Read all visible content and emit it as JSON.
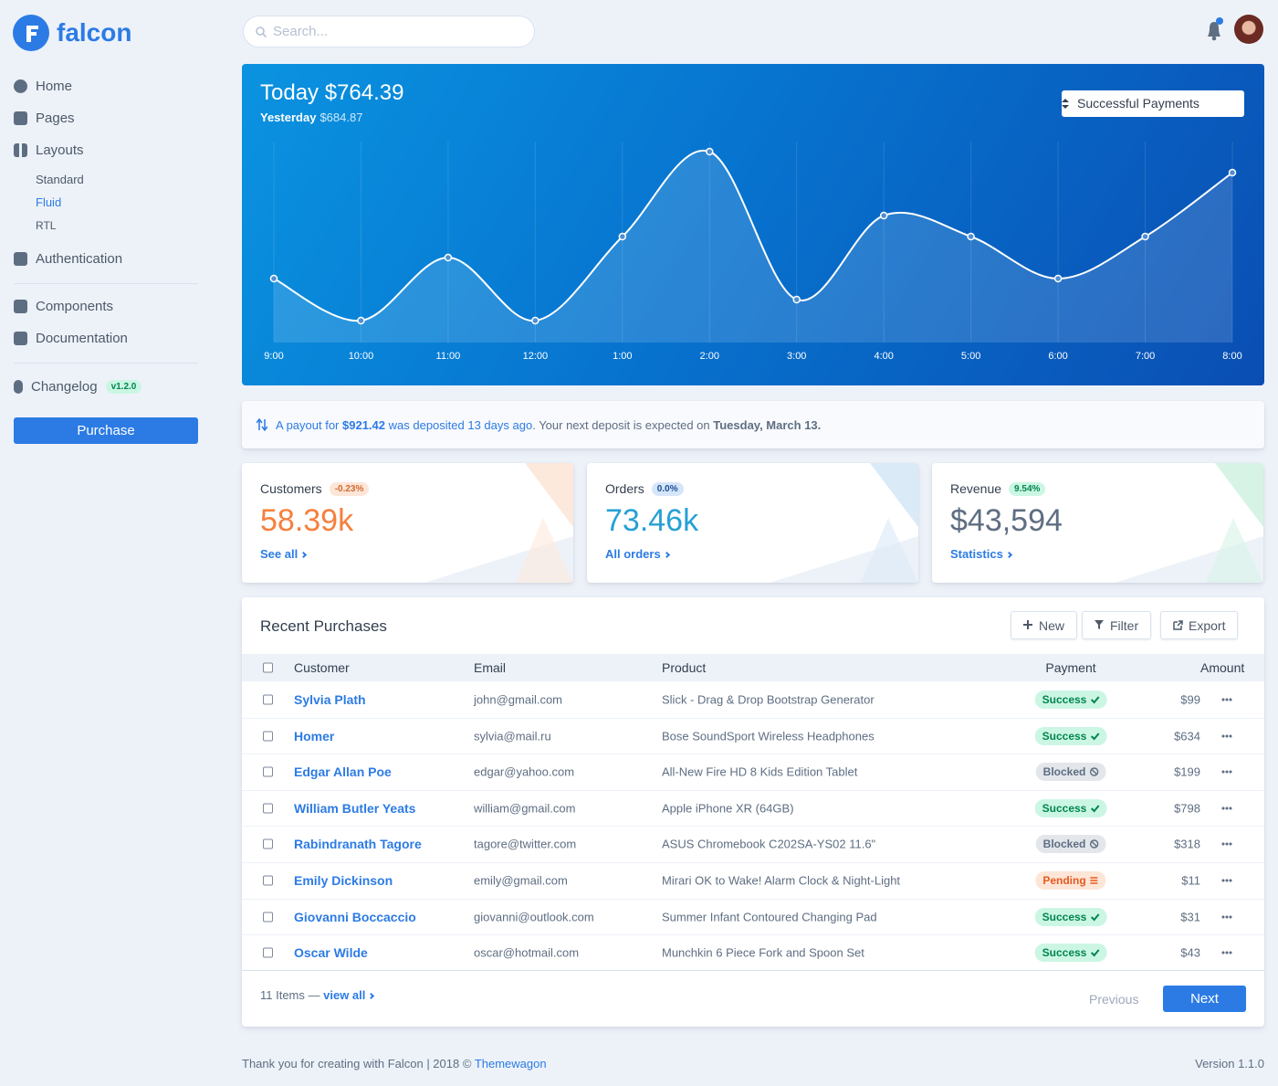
{
  "brand": "falcon",
  "search_placeholder": "Search...",
  "nav": {
    "home": "Home",
    "pages": "Pages",
    "layouts": "Layouts",
    "standard": "Standard",
    "fluid": "Fluid",
    "rtl": "RTL",
    "authentication": "Authentication",
    "components": "Components",
    "documentation": "Documentation",
    "changelog": "Changelog",
    "changelog_badge": "v1.2.0",
    "purchase": "Purchase"
  },
  "chart_data": {
    "type": "line",
    "title": "Today $764.39",
    "subtitle_label": "Yesterday",
    "subtitle_value": "$684.87",
    "select": "Successful Payments",
    "categories": [
      "9:00",
      "10:00",
      "11:00",
      "12:00",
      "1:00",
      "2:00",
      "3:00",
      "4:00",
      "5:00",
      "6:00",
      "7:00",
      "8:00"
    ],
    "values": [
      70,
      24,
      93,
      24,
      116,
      209,
      47,
      139,
      116,
      70,
      116,
      186
    ],
    "ylim": [
      0,
      225
    ],
    "color": "#ffffff"
  },
  "payout": {
    "text_1": "A payout for",
    "amount": "$921.42",
    "text_2": "was deposited 13 days ago",
    "text_3": ". Your next deposit is expected on",
    "date": "Tuesday, March 13."
  },
  "stats": [
    {
      "label": "Customers",
      "badge": "-0.23%",
      "value": "58.39k",
      "link": "See all"
    },
    {
      "label": "Orders",
      "badge": "0.0%",
      "value": "73.46k",
      "link": "All orders"
    },
    {
      "label": "Revenue",
      "badge": "9.54%",
      "value": "$43,594",
      "link": "Statistics"
    }
  ],
  "purchases": {
    "title": "Recent Purchases",
    "buttons": [
      "New",
      "Filter",
      "Export"
    ],
    "columns": [
      "Customer",
      "Email",
      "Product",
      "Payment",
      "Amount"
    ],
    "rows": [
      {
        "customer": "Sylvia Plath",
        "email": "john@gmail.com",
        "product": "Slick - Drag & Drop Bootstrap Generator",
        "payment": "Success",
        "payment_color": "#00864e",
        "amount": "$99"
      },
      {
        "customer": "Homer",
        "email": "sylvia@mail.ru",
        "product": "Bose SoundSport Wireless Headphones",
        "payment": "Success",
        "payment_color": "#00864e",
        "amount": "$634"
      },
      {
        "customer": "Edgar Allan Poe",
        "email": "edgar@yahoo.com",
        "product": "All-New Fire HD 8 Kids Edition Tablet",
        "payment": "Blocked",
        "payment_color": "#5e6e82",
        "amount": "$199"
      },
      {
        "customer": "William Butler Yeats",
        "email": "william@gmail.com",
        "product": "Apple iPhone XR (64GB)",
        "payment": "Success",
        "payment_color": "#00864e",
        "amount": "$798"
      },
      {
        "customer": "Rabindranath Tagore",
        "email": "tagore@twitter.com",
        "product": "ASUS Chromebook C202SA-YS02 11.6\"",
        "payment": "Blocked",
        "payment_color": "#5e6e82",
        "amount": "$318"
      },
      {
        "customer": "Emily Dickinson",
        "email": "emily@gmail.com",
        "product": "Mirari OK to Wake! Alarm Clock & Night-Light",
        "payment": "Pending",
        "payment_color": "#e65a1e",
        "amount": "$11"
      },
      {
        "customer": "Giovanni Boccaccio",
        "email": "giovanni@outlook.com",
        "product": "Summer Infant Contoured Changing Pad",
        "payment": "Success",
        "payment_color": "#00864e",
        "amount": "$31"
      },
      {
        "customer": "Oscar Wilde",
        "email": "oscar@hotmail.com",
        "product": "Munchkin 6 Piece Fork and Spoon Set",
        "payment": "Success",
        "payment_color": "#00864e",
        "amount": "$43"
      }
    ],
    "footer_count": "11 Items —",
    "footer_link": "view all",
    "previous": "Previous",
    "next": "Next"
  },
  "footer": {
    "text": "Thank you for creating with Falcon | 2018 ©",
    "link": "Themewagon",
    "version": "Version 1.1.0"
  }
}
